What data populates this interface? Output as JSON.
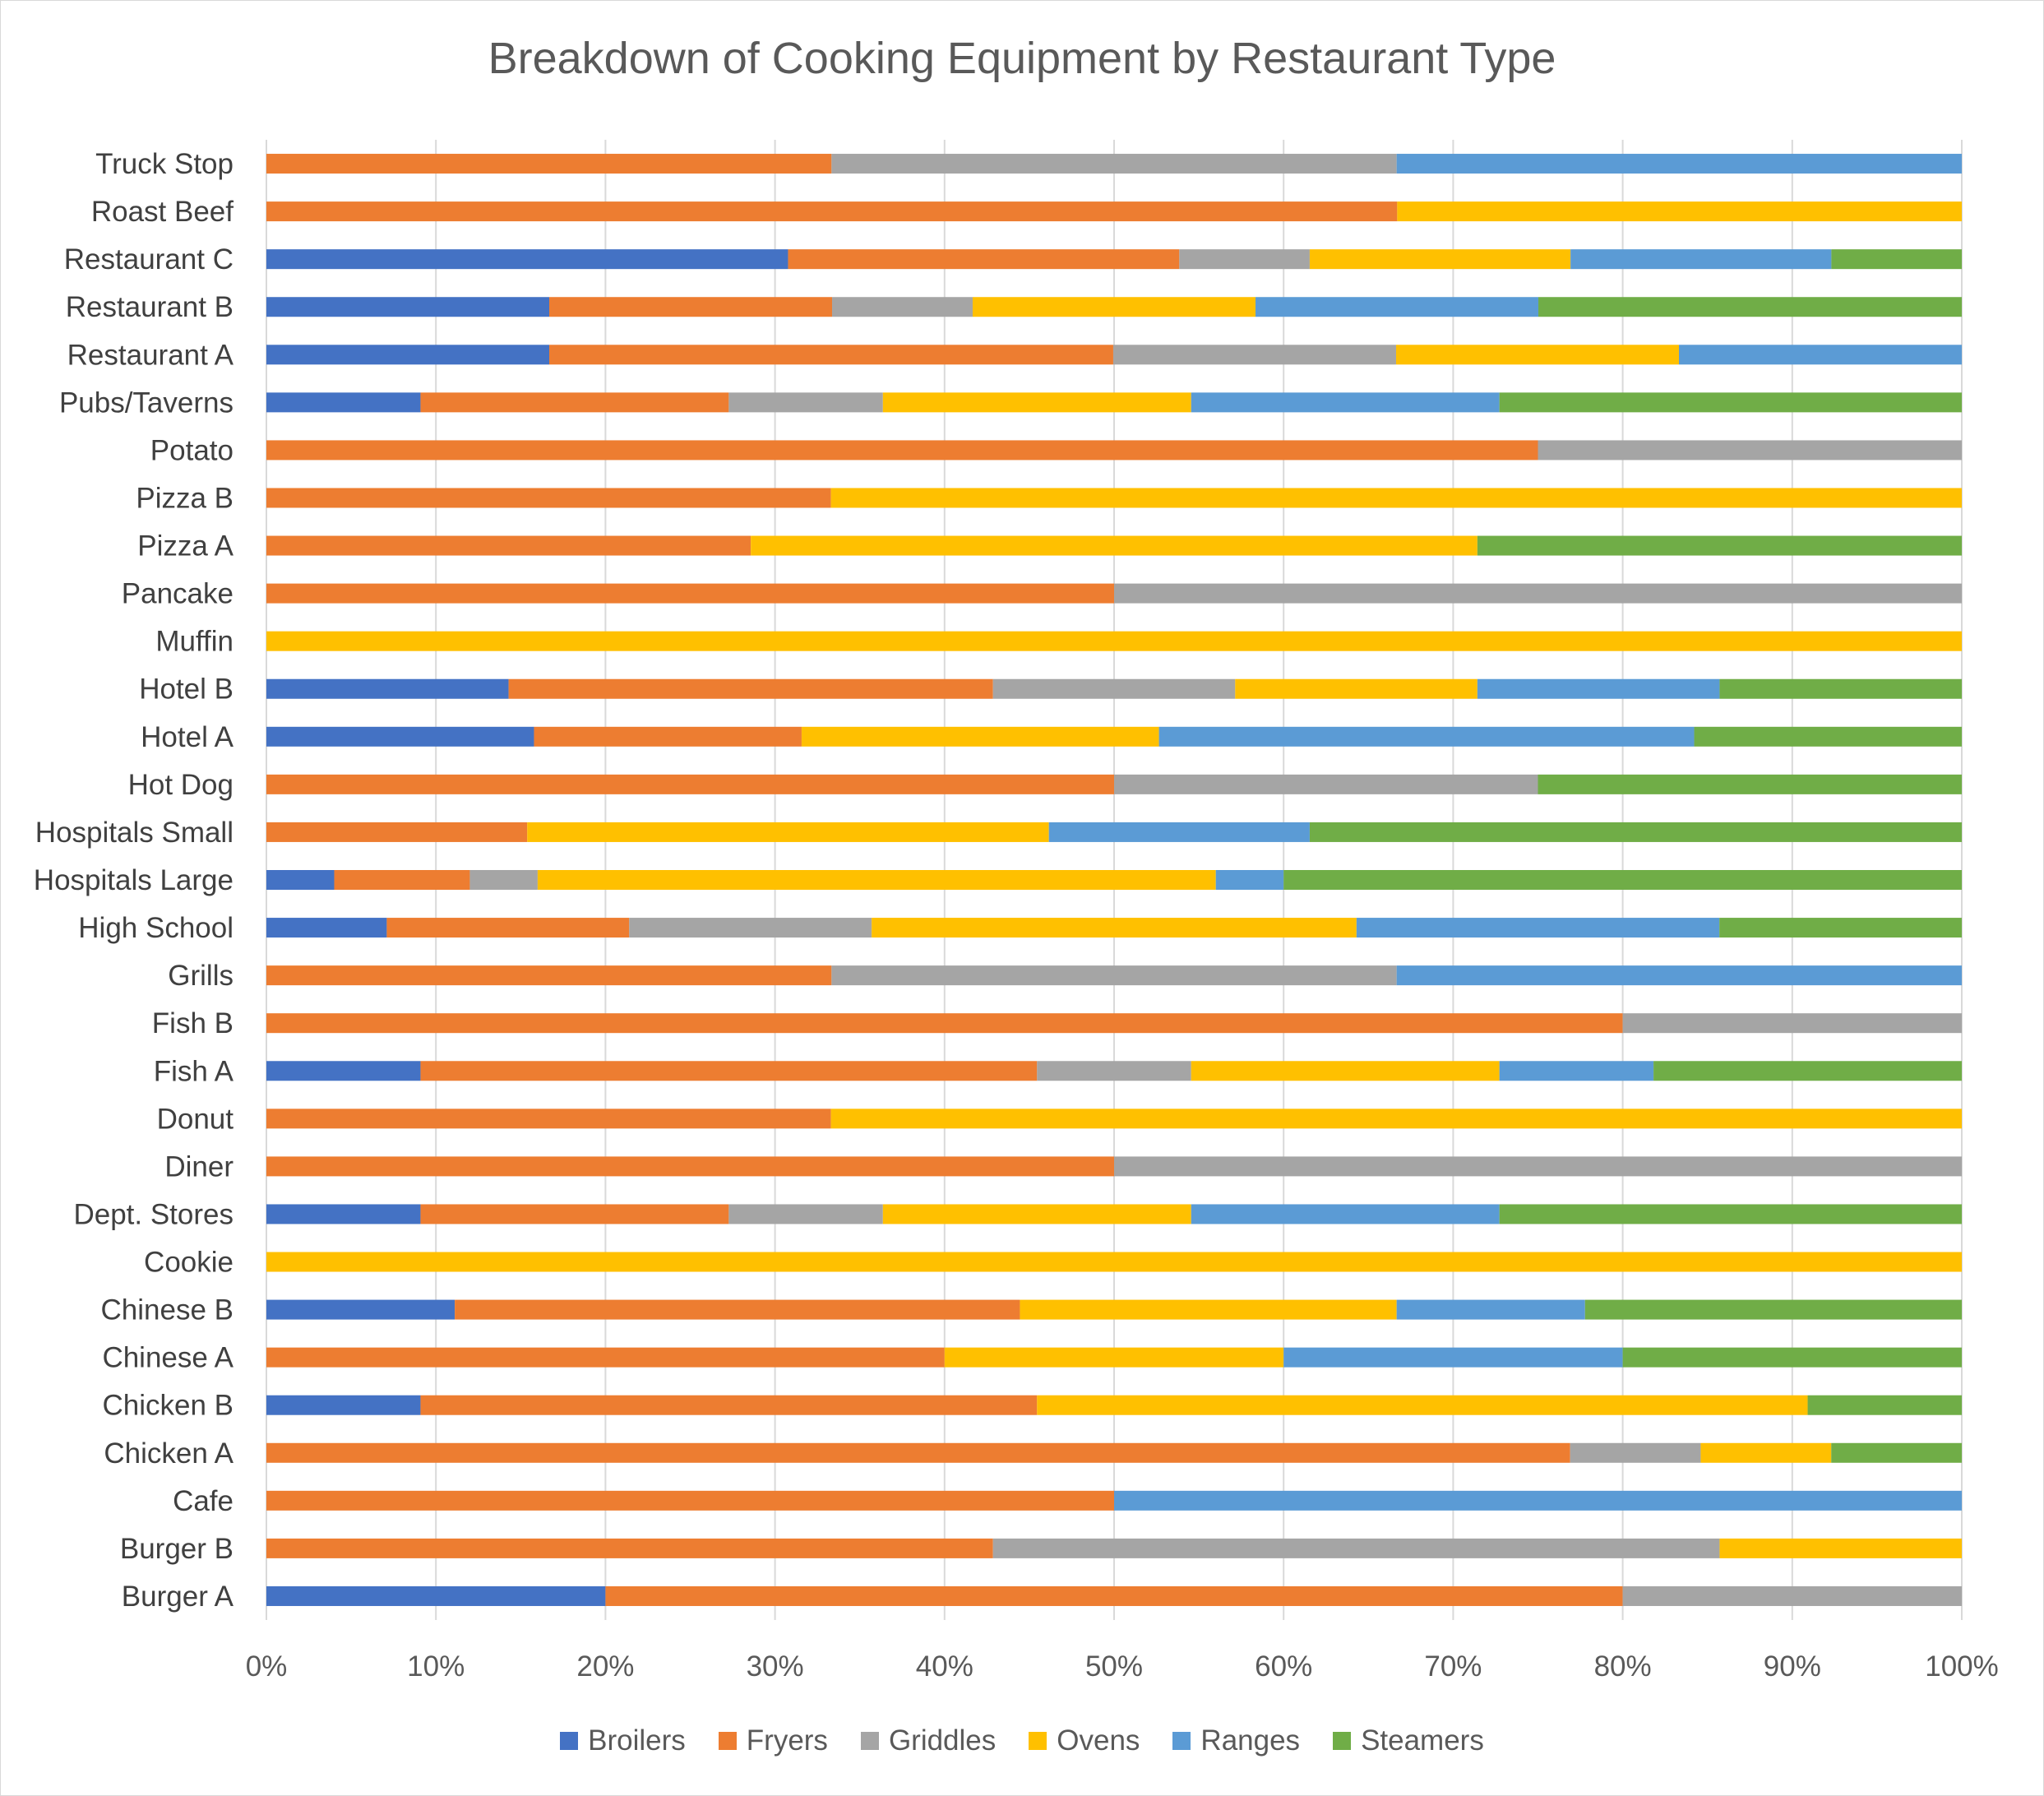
{
  "chart_data": {
    "type": "bar",
    "orientation": "horizontal",
    "stacked": "100%",
    "title": "Breakdown of Cooking Equipment by Restaurant Type",
    "xlim": [
      0,
      100
    ],
    "x_ticks": [
      "0%",
      "10%",
      "20%",
      "30%",
      "40%",
      "50%",
      "60%",
      "70%",
      "80%",
      "90%",
      "100%"
    ],
    "grid": "vertical",
    "legend_position": "bottom",
    "categories": [
      "Burger A",
      "Burger B",
      "Cafe",
      "Chicken A",
      "Chicken B",
      "Chinese A",
      "Chinese B",
      "Cookie",
      "Dept. Stores",
      "Diner",
      "Donut",
      "Fish A",
      "Fish B",
      "Grills",
      "High School",
      "Hospitals Large",
      "Hospitals Small",
      "Hot Dog",
      "Hotel A",
      "Hotel B",
      "Muffin",
      "Pancake",
      "Pizza A",
      "Pizza B",
      "Potato",
      "Pubs/Taverns",
      "Restaurant A",
      "Restaurant B",
      "Restaurant C",
      "Roast Beef",
      "Truck Stop"
    ],
    "series": [
      {
        "name": "Broilers",
        "color": "#4472C4",
        "values": [
          20,
          0,
          0,
          0,
          9.1,
          0,
          11.1,
          0,
          9.1,
          0,
          0,
          9.1,
          0,
          0,
          7.1,
          4,
          0,
          0,
          15.8,
          14.3,
          0,
          0,
          0,
          0,
          0,
          9.1,
          16.7,
          16.7,
          30.8,
          0,
          0
        ]
      },
      {
        "name": "Fryers",
        "color": "#ED7D31",
        "values": [
          60,
          42.9,
          50,
          76.9,
          36.4,
          40,
          33.3,
          0,
          18.2,
          50,
          33.3,
          36.4,
          80,
          33.3,
          14.3,
          8,
          15.4,
          50,
          15.8,
          28.6,
          0,
          50,
          28.6,
          33.3,
          75,
          18.2,
          33.3,
          16.7,
          23.1,
          66.7,
          33.3
        ]
      },
      {
        "name": "Griddles",
        "color": "#A5A5A5",
        "values": [
          20,
          42.9,
          0,
          7.7,
          0,
          0,
          0,
          0,
          9.1,
          50,
          0,
          9.1,
          20,
          33.3,
          14.3,
          4,
          0,
          25,
          0,
          14.3,
          0,
          50,
          0,
          0,
          25,
          9.1,
          16.7,
          8.3,
          7.7,
          0,
          33.3
        ]
      },
      {
        "name": "Ovens",
        "color": "#FFC000",
        "values": [
          0,
          14.3,
          0,
          7.7,
          45.5,
          20,
          22.2,
          100,
          18.2,
          0,
          66.7,
          18.2,
          0,
          0,
          28.6,
          40,
          30.8,
          0,
          21.1,
          14.3,
          100,
          0,
          42.9,
          66.7,
          0,
          18.2,
          16.7,
          16.7,
          15.4,
          33.3,
          0
        ]
      },
      {
        "name": "Ranges",
        "color": "#5B9BD5",
        "values": [
          0,
          0,
          50,
          0,
          0,
          20,
          11.1,
          0,
          18.2,
          0,
          0,
          9.1,
          0,
          33.3,
          21.4,
          4,
          15.4,
          0,
          31.6,
          14.3,
          0,
          0,
          0,
          0,
          0,
          18.2,
          16.7,
          16.7,
          15.4,
          0,
          33.3
        ]
      },
      {
        "name": "Steamers",
        "color": "#70AD47",
        "values": [
          0,
          0,
          0,
          7.7,
          9.1,
          20,
          22.2,
          0,
          27.3,
          0,
          0,
          18.2,
          0,
          0,
          14.3,
          40,
          38.5,
          25,
          15.8,
          14.3,
          0,
          0,
          28.6,
          0,
          0,
          27.3,
          0,
          25,
          7.7,
          0,
          0
        ]
      }
    ]
  }
}
